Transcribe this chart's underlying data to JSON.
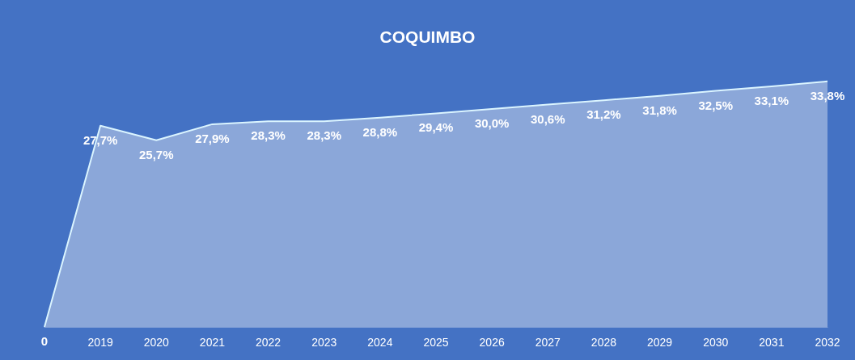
{
  "chart_data": {
    "type": "area",
    "title": "COQUIMBO",
    "categories": [
      null,
      "2019",
      "2020",
      "2021",
      "2022",
      "2023",
      "2024",
      "2025",
      "2026",
      "2027",
      "2028",
      "2029",
      "2030",
      "2031",
      "2032"
    ],
    "series": [
      {
        "color": "#a9bde3",
        "values": [
          0,
          27.7,
          25.7,
          27.9,
          28.3,
          28.3,
          28.8,
          29.4,
          30.0,
          30.6,
          31.2,
          31.8,
          32.5,
          33.1,
          33.8
        ],
        "value_labels": [
          "0",
          "27,7%",
          "25,7%",
          "27,9%",
          "28,3%",
          "28,3%",
          "28,8%",
          "29,4%",
          "30,0%",
          "30,6%",
          "31,2%",
          "31,8%",
          "32,5%",
          "33,1%",
          "33,8%"
        ]
      }
    ],
    "grid": false,
    "marker": "none"
  }
}
